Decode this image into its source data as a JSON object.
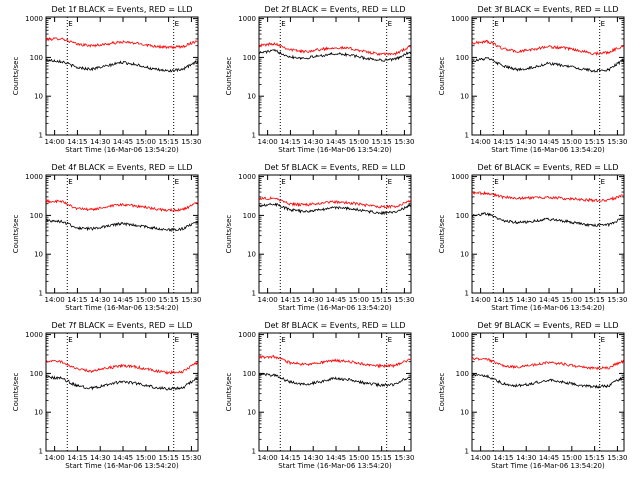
{
  "chart_data": [
    {
      "type": "line",
      "title": "Det 1f BLACK = Events, RED = LLD",
      "xlabel": "Start Time (16-Mar-06 13:54:20)",
      "ylabel": "Counts/sec",
      "xtick_labels": [
        "14:00",
        "14:15",
        "14:30",
        "14:45",
        "15:00",
        "15:15",
        "15:30"
      ],
      "ytick_labels": [
        "1",
        "10",
        "100",
        "1000"
      ],
      "ylim": [
        1,
        1100
      ],
      "x_range_minutes": [
        0,
        100
      ],
      "dotted_vlines_minutes": [
        14,
        84
      ],
      "vline_marker": "E",
      "x": [
        0,
        10,
        20,
        30,
        40,
        50,
        60,
        70,
        80,
        90,
        100
      ],
      "series": [
        {
          "name": "RED = LLD",
          "color": "#ff0000",
          "values": [
            290,
            310,
            220,
            200,
            220,
            250,
            230,
            200,
            180,
            190,
            270
          ]
        },
        {
          "name": "BLACK = Events",
          "color": "#000000",
          "values": [
            85,
            80,
            55,
            50,
            60,
            75,
            65,
            50,
            45,
            48,
            80
          ]
        }
      ]
    },
    {
      "type": "line",
      "title": "Det 2f BLACK = Events, RED = LLD",
      "xlabel": "Start Time (16-Mar-06 13:54:20)",
      "ylabel": "Counts/sec",
      "xtick_labels": [
        "14:00",
        "14:15",
        "14:30",
        "14:45",
        "15:00",
        "15:15",
        "15:30"
      ],
      "ytick_labels": [
        "1",
        "10",
        "100",
        "1000"
      ],
      "ylim": [
        1,
        1100
      ],
      "x_range_minutes": [
        0,
        100
      ],
      "dotted_vlines_minutes": [
        14,
        84
      ],
      "vline_marker": "E",
      "x": [
        0,
        10,
        20,
        30,
        40,
        50,
        60,
        70,
        80,
        90,
        100
      ],
      "series": [
        {
          "name": "RED = LLD",
          "color": "#ff0000",
          "values": [
            200,
            230,
            160,
            140,
            160,
            180,
            170,
            140,
            120,
            125,
            190
          ]
        },
        {
          "name": "BLACK = Events",
          "color": "#000000",
          "values": [
            130,
            150,
            105,
            95,
            110,
            125,
            115,
            95,
            85,
            90,
            140
          ]
        }
      ]
    },
    {
      "type": "line",
      "title": "Det 3f BLACK = Events, RED = LLD",
      "xlabel": "Start Time (16-Mar-06 13:54:20)",
      "ylabel": "Counts/sec",
      "xtick_labels": [
        "14:00",
        "14:15",
        "14:30",
        "14:45",
        "15:00",
        "15:15",
        "15:30"
      ],
      "ytick_labels": [
        "1",
        "10",
        "100",
        "1000"
      ],
      "ylim": [
        1,
        1100
      ],
      "x_range_minutes": [
        0,
        100
      ],
      "dotted_vlines_minutes": [
        14,
        84
      ],
      "vline_marker": "E",
      "x": [
        0,
        10,
        20,
        30,
        40,
        50,
        60,
        70,
        80,
        90,
        100
      ],
      "series": [
        {
          "name": "RED = LLD",
          "color": "#ff0000",
          "values": [
            230,
            260,
            170,
            140,
            160,
            190,
            175,
            150,
            125,
            135,
            200
          ]
        },
        {
          "name": "BLACK = Events",
          "color": "#000000",
          "values": [
            80,
            95,
            60,
            48,
            55,
            70,
            62,
            52,
            45,
            48,
            85
          ]
        }
      ]
    },
    {
      "type": "line",
      "title": "Det 4f BLACK = Events, RED = LLD",
      "xlabel": "Start Time (16-Mar-06 13:54:20)",
      "ylabel": "Counts/sec",
      "xtick_labels": [
        "14:00",
        "14:15",
        "14:30",
        "14:45",
        "15:00",
        "15:15",
        "15:30"
      ],
      "ytick_labels": [
        "1",
        "10",
        "100",
        "1000"
      ],
      "ylim": [
        1,
        1100
      ],
      "x_range_minutes": [
        0,
        100
      ],
      "dotted_vlines_minutes": [
        14,
        84
      ],
      "vline_marker": "E",
      "x": [
        0,
        10,
        20,
        30,
        40,
        50,
        60,
        70,
        80,
        90,
        100
      ],
      "series": [
        {
          "name": "RED = LLD",
          "color": "#ff0000",
          "values": [
            230,
            230,
            150,
            140,
            165,
            190,
            175,
            150,
            135,
            140,
            210
          ]
        },
        {
          "name": "BLACK = Events",
          "color": "#000000",
          "values": [
            75,
            70,
            48,
            45,
            52,
            62,
            55,
            48,
            42,
            45,
            70
          ]
        }
      ]
    },
    {
      "type": "line",
      "title": "Det 5f BLACK = Events, RED = LLD",
      "xlabel": "Start Time (16-Mar-06 13:54:20)",
      "ylabel": "Counts/sec",
      "xtick_labels": [
        "14:00",
        "14:15",
        "14:30",
        "14:45",
        "15:00",
        "15:15",
        "15:30"
      ],
      "ytick_labels": [
        "1",
        "10",
        "100",
        "1000"
      ],
      "ylim": [
        1,
        1100
      ],
      "x_range_minutes": [
        0,
        100
      ],
      "dotted_vlines_minutes": [
        14,
        84
      ],
      "vline_marker": "E",
      "x": [
        0,
        10,
        20,
        30,
        40,
        50,
        60,
        70,
        80,
        90,
        100
      ],
      "series": [
        {
          "name": "RED = LLD",
          "color": "#ff0000",
          "values": [
            270,
            280,
            200,
            185,
            205,
            225,
            210,
            185,
            165,
            170,
            240
          ]
        },
        {
          "name": "BLACK = Events",
          "color": "#000000",
          "values": [
            180,
            200,
            140,
            125,
            140,
            160,
            150,
            130,
            115,
            120,
            185
          ]
        }
      ]
    },
    {
      "type": "line",
      "title": "Det 6f BLACK = Events, RED = LLD",
      "xlabel": "Start Time (16-Mar-06 13:54:20)",
      "ylabel": "Counts/sec",
      "xtick_labels": [
        "14:00",
        "14:15",
        "14:30",
        "14:45",
        "15:00",
        "15:15",
        "15:30"
      ],
      "ytick_labels": [
        "1",
        "10",
        "100",
        "1000"
      ],
      "ylim": [
        1,
        1100
      ],
      "x_range_minutes": [
        0,
        100
      ],
      "dotted_vlines_minutes": [
        14,
        84
      ],
      "vline_marker": "E",
      "x": [
        0,
        10,
        20,
        30,
        40,
        50,
        60,
        70,
        80,
        90,
        100
      ],
      "series": [
        {
          "name": "RED = LLD",
          "color": "#ff0000",
          "values": [
            380,
            370,
            300,
            280,
            285,
            290,
            275,
            260,
            245,
            250,
            330
          ]
        },
        {
          "name": "BLACK = Events",
          "color": "#000000",
          "values": [
            100,
            110,
            75,
            65,
            70,
            80,
            72,
            62,
            55,
            58,
            85
          ]
        }
      ]
    },
    {
      "type": "line",
      "title": "Det 7f BLACK = Events, RED = LLD",
      "xlabel": "Start Time (16-Mar-06 13:54:20)",
      "ylabel": "Counts/sec",
      "xtick_labels": [
        "14:00",
        "14:15",
        "14:30",
        "14:45",
        "15:00",
        "15:15",
        "15:30"
      ],
      "ytick_labels": [
        "1",
        "10",
        "100",
        "1000"
      ],
      "ylim": [
        1,
        1100
      ],
      "x_range_minutes": [
        0,
        100
      ],
      "dotted_vlines_minutes": [
        14,
        84
      ],
      "vline_marker": "E",
      "x": [
        0,
        10,
        20,
        30,
        40,
        50,
        60,
        70,
        80,
        90,
        100
      ],
      "series": [
        {
          "name": "RED = LLD",
          "color": "#ff0000",
          "values": [
            210,
            200,
            130,
            115,
            135,
            160,
            145,
            120,
            105,
            110,
            190
          ]
        },
        {
          "name": "BLACK = Events",
          "color": "#000000",
          "values": [
            80,
            75,
            48,
            42,
            50,
            62,
            55,
            45,
            40,
            42,
            75
          ]
        }
      ]
    },
    {
      "type": "line",
      "title": "Det 8f BLACK = Events, RED = LLD",
      "xlabel": "Start Time (16-Mar-06 13:54:20)",
      "ylabel": "Counts/sec",
      "xtick_labels": [
        "14:00",
        "14:15",
        "14:30",
        "14:45",
        "15:00",
        "15:15",
        "15:30"
      ],
      "ytick_labels": [
        "1",
        "10",
        "100",
        "1000"
      ],
      "ylim": [
        1,
        1100
      ],
      "x_range_minutes": [
        0,
        100
      ],
      "dotted_vlines_minutes": [
        14,
        84
      ],
      "vline_marker": "E",
      "x": [
        0,
        10,
        20,
        30,
        40,
        50,
        60,
        70,
        80,
        90,
        100
      ],
      "series": [
        {
          "name": "RED = LLD",
          "color": "#ff0000",
          "values": [
            260,
            270,
            190,
            170,
            190,
            215,
            200,
            170,
            155,
            160,
            230
          ]
        },
        {
          "name": "BLACK = Events",
          "color": "#000000",
          "values": [
            95,
            90,
            60,
            52,
            60,
            75,
            68,
            56,
            50,
            52,
            85
          ]
        }
      ]
    },
    {
      "type": "line",
      "title": "Det 9f BLACK = Events, RED = LLD",
      "xlabel": "Start Time (16-Mar-06 13:54:20)",
      "ylabel": "Counts/sec",
      "xtick_labels": [
        "14:00",
        "14:15",
        "14:30",
        "14:45",
        "15:00",
        "15:15",
        "15:30"
      ],
      "ytick_labels": [
        "1",
        "10",
        "100",
        "1000"
      ],
      "ylim": [
        1,
        1100
      ],
      "x_range_minutes": [
        0,
        100
      ],
      "dotted_vlines_minutes": [
        14,
        84
      ],
      "vline_marker": "E",
      "x": [
        0,
        10,
        20,
        30,
        40,
        50,
        60,
        70,
        80,
        90,
        100
      ],
      "series": [
        {
          "name": "RED = LLD",
          "color": "#ff0000",
          "values": [
            240,
            230,
            160,
            145,
            165,
            190,
            175,
            150,
            135,
            140,
            210
          ]
        },
        {
          "name": "BLACK = Events",
          "color": "#000000",
          "values": [
            90,
            85,
            55,
            48,
            55,
            68,
            60,
            50,
            45,
            48,
            80
          ]
        }
      ]
    }
  ]
}
